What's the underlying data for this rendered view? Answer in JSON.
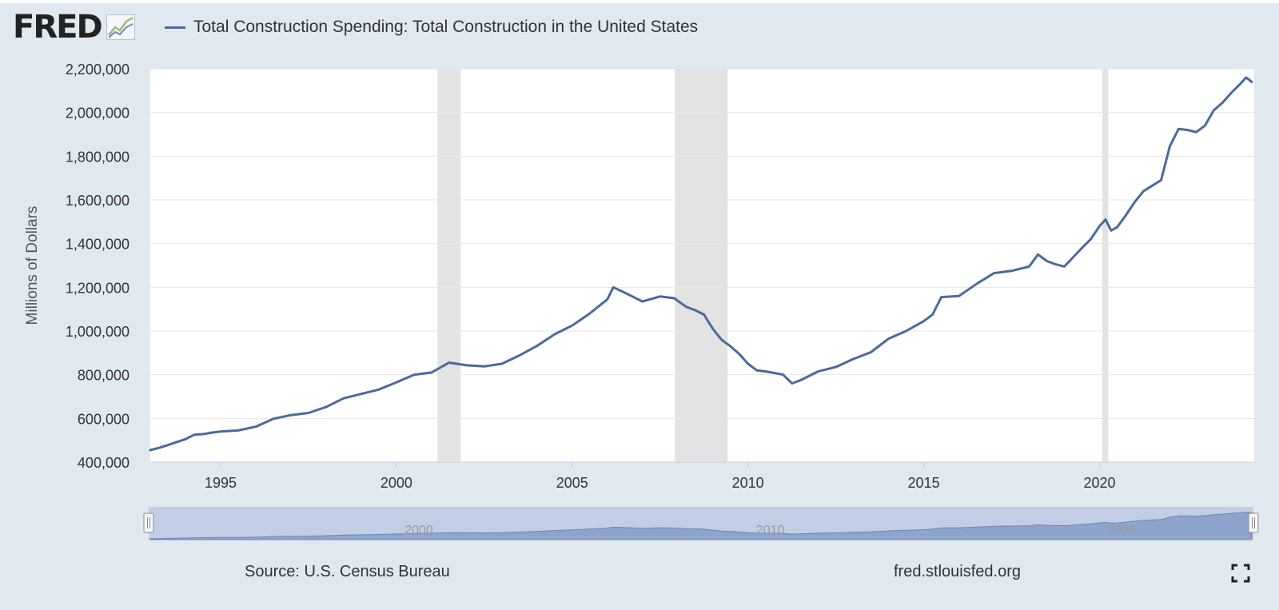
{
  "header": {
    "logo_text": "FRED",
    "logo_icon": "line-graph-icon",
    "legend_label": "Total Construction Spending: Total Construction in the United States"
  },
  "colors": {
    "series": "#4b6a9b",
    "recession": "#e3e3e3",
    "navigator_fill": "#8fa4cc",
    "navigator_mask": "#c1cee5"
  },
  "footer": {
    "source": "Source: U.S. Census Bureau",
    "url": "fred.stlouisfed.org",
    "fullscreen_icon": "fullscreen-icon"
  },
  "chart_data": {
    "type": "line",
    "title": "Total Construction Spending: Total Construction in the United States",
    "xlabel": "",
    "ylabel": "Millions of Dollars",
    "xlim": [
      1993.0,
      2024.4
    ],
    "ylim": [
      400000,
      2200000
    ],
    "xticks": [
      1995,
      2000,
      2005,
      2010,
      2015,
      2020
    ],
    "yticks": [
      400000,
      600000,
      800000,
      1000000,
      1200000,
      1400000,
      1600000,
      1800000,
      2000000,
      2200000
    ],
    "ytick_labels": [
      "400,000",
      "600,000",
      "800,000",
      "1,000,000",
      "1,200,000",
      "1,400,000",
      "1,600,000",
      "1,800,000",
      "2,000,000",
      "2,200,000"
    ],
    "grid": "horizontal",
    "legend_position": "top-left",
    "recessions": [
      [
        2001.17,
        2001.83
      ],
      [
        2007.92,
        2009.42
      ],
      [
        2020.08,
        2020.25
      ]
    ],
    "navigator_ticks": [
      2000,
      2010,
      2020
    ],
    "series": [
      {
        "name": "Total Construction Spending: Total Construction in the United States",
        "x": [
          1993.0,
          1993.25,
          1993.5,
          1993.75,
          1994.0,
          1994.25,
          1994.5,
          1994.75,
          1995.0,
          1995.5,
          1996.0,
          1996.5,
          1997.0,
          1997.5,
          1998.0,
          1998.5,
          1999.0,
          1999.5,
          2000.0,
          2000.5,
          2001.0,
          2001.5,
          2002.0,
          2002.5,
          2003.0,
          2003.5,
          2004.0,
          2004.5,
          2005.0,
          2005.5,
          2006.0,
          2006.17,
          2006.5,
          2007.0,
          2007.5,
          2007.9,
          2008.25,
          2008.5,
          2008.75,
          2009.0,
          2009.25,
          2009.5,
          2009.75,
          2010.0,
          2010.25,
          2010.5,
          2010.75,
          2011.0,
          2011.25,
          2011.5,
          2011.75,
          2012.0,
          2012.5,
          2013.0,
          2013.5,
          2014.0,
          2014.5,
          2015.0,
          2015.25,
          2015.5,
          2016.0,
          2016.5,
          2017.0,
          2017.5,
          2018.0,
          2018.25,
          2018.5,
          2018.75,
          2019.0,
          2019.5,
          2019.75,
          2020.0,
          2020.17,
          2020.33,
          2020.5,
          2020.75,
          2021.0,
          2021.25,
          2021.5,
          2021.75,
          2022.0,
          2022.25,
          2022.5,
          2022.75,
          2023.0,
          2023.25,
          2023.5,
          2023.75,
          2024.0,
          2024.17,
          2024.33
        ],
        "y": [
          455000,
          465000,
          478000,
          492000,
          505000,
          525000,
          528000,
          535000,
          540000,
          545000,
          562000,
          598000,
          615000,
          625000,
          652000,
          692000,
          712000,
          732000,
          765000,
          800000,
          810000,
          855000,
          843000,
          838000,
          850000,
          888000,
          932000,
          985000,
          1025000,
          1080000,
          1145000,
          1200000,
          1175000,
          1135000,
          1158000,
          1150000,
          1110000,
          1095000,
          1075000,
          1010000,
          960000,
          930000,
          895000,
          850000,
          820000,
          815000,
          808000,
          800000,
          760000,
          775000,
          795000,
          815000,
          835000,
          872000,
          903000,
          965000,
          1000000,
          1045000,
          1075000,
          1155000,
          1160000,
          1215000,
          1265000,
          1275000,
          1295000,
          1350000,
          1320000,
          1305000,
          1295000,
          1380000,
          1420000,
          1480000,
          1510000,
          1460000,
          1475000,
          1530000,
          1590000,
          1640000,
          1665000,
          1690000,
          1845000,
          1925000,
          1920000,
          1910000,
          1940000,
          2010000,
          2045000,
          2090000,
          2130000,
          2160000,
          2140000
        ]
      }
    ]
  }
}
